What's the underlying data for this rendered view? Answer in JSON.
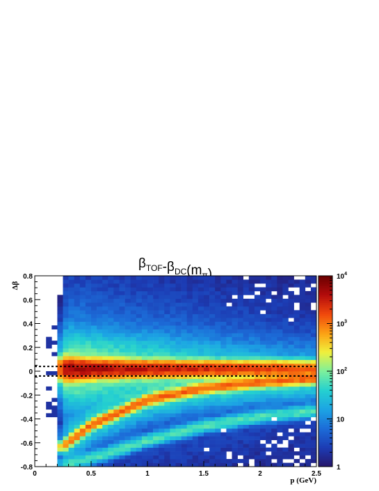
{
  "chart_data": {
    "type": "heatmap",
    "title": {
      "parts": [
        {
          "text": "β",
          "sub": "TOF"
        },
        {
          "text": "-β",
          "sub": "DC"
        },
        {
          "text": "(m",
          "sub": "π"
        },
        {
          "text": ")",
          "sub": ""
        }
      ]
    },
    "xlabel": "p (GeV)",
    "ylabel": "Δβ",
    "xlim": [
      0,
      2.5
    ],
    "ylim": [
      -0.8,
      0.8
    ],
    "xticks": [
      "0",
      "0.5",
      "1",
      "1.5",
      "2",
      "2.5"
    ],
    "yticks": [
      "0.8",
      "0.6",
      "0.4",
      "0.2",
      "0",
      "-0.2",
      "-0.4",
      "-0.6",
      "-0.8"
    ],
    "z_scale": "log",
    "zlim": [
      1,
      10000
    ],
    "colorbar": {
      "ticks": [
        {
          "base": "1",
          "exp": ""
        },
        {
          "base": "10",
          "exp": ""
        },
        {
          "base": "10",
          "exp": "2"
        },
        {
          "base": "10",
          "exp": "3"
        },
        {
          "base": "10",
          "exp": "4"
        }
      ]
    },
    "bins": {
      "nx": 50,
      "ny": 50
    },
    "bands": [
      {
        "name": "pion",
        "points": [
          [
            0.25,
            0.02
          ],
          [
            1.0,
            0.02
          ],
          [
            2.5,
            0.02
          ]
        ],
        "peak": 5000
      },
      {
        "name": "kaon",
        "points": [
          [
            0.25,
            -0.63
          ],
          [
            0.5,
            -0.45
          ],
          [
            1.0,
            -0.24
          ],
          [
            1.5,
            -0.14
          ],
          [
            2.0,
            -0.09
          ],
          [
            2.5,
            -0.06
          ]
        ],
        "peak": 1200
      },
      {
        "name": "proton",
        "points": [
          [
            0.3,
            -0.78
          ],
          [
            0.5,
            -0.73
          ],
          [
            1.0,
            -0.58
          ],
          [
            1.5,
            -0.46
          ],
          [
            2.0,
            -0.38
          ],
          [
            2.5,
            -0.33
          ]
        ],
        "peak": 60
      }
    ],
    "cut_lines": [
      0.04,
      -0.04
    ],
    "colors": {
      "palette": [
        "#27156a",
        "#1c3cb4",
        "#1c6cd8",
        "#1ca4e4",
        "#24d0d0",
        "#7cf09c",
        "#f0f03c",
        "#fca014",
        "#f0480c",
        "#b40c0c",
        "#6a0000"
      ],
      "cut_line": "#000000",
      "empty": "#ffffff"
    }
  }
}
